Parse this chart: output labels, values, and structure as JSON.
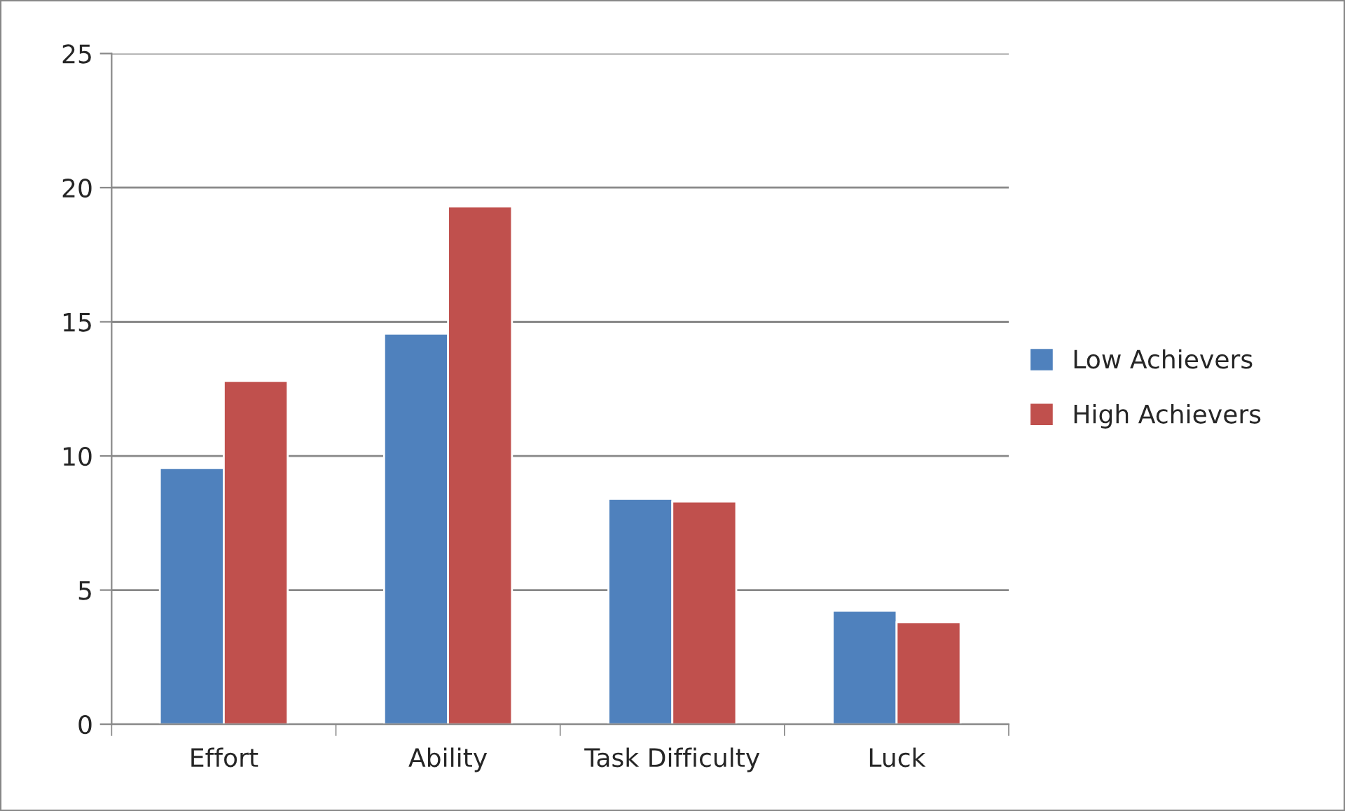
{
  "chart_data": {
    "type": "bar",
    "categories": [
      "Effort",
      "Ability",
      "Task Difficulty",
      "Luck"
    ],
    "series": [
      {
        "name": "Low Achievers",
        "color": "#4f81bd",
        "values": [
          9.55,
          14.56,
          8.4,
          4.23
        ]
      },
      {
        "name": "High Achievers",
        "color": "#c0504d",
        "values": [
          12.8,
          19.3,
          8.3,
          3.8
        ]
      }
    ],
    "ylim": [
      0,
      25
    ],
    "yticks": [
      0,
      5,
      10,
      15,
      20,
      25
    ],
    "grid": "y",
    "legend": "right"
  }
}
